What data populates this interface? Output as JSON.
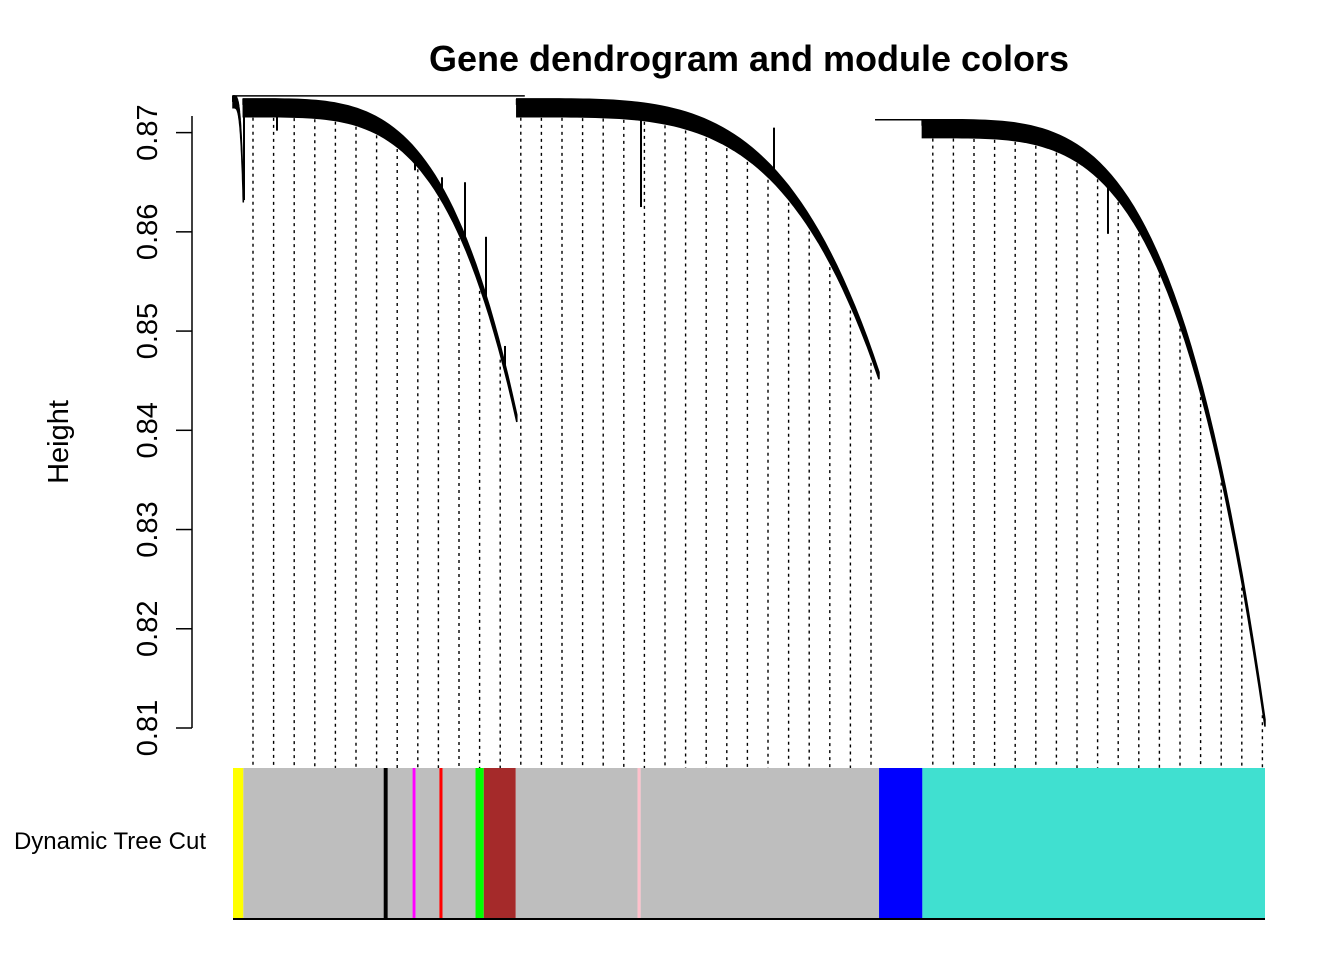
{
  "chart_data": {
    "type": "dendrogram",
    "title": "Gene dendrogram and module colors",
    "ylabel": "Height",
    "xlabel": "",
    "ylim": [
      0.81,
      0.875
    ],
    "yticks": [
      {
        "value": 0.81,
        "label": "0.81"
      },
      {
        "value": 0.82,
        "label": "0.82"
      },
      {
        "value": 0.83,
        "label": "0.83"
      },
      {
        "value": 0.84,
        "label": "0.84"
      },
      {
        "value": 0.85,
        "label": "0.85"
      },
      {
        "value": 0.86,
        "label": "0.86"
      },
      {
        "value": 0.87,
        "label": "0.87"
      }
    ],
    "n_leaves": 1000,
    "root_height": 0.8737,
    "branches": [
      {
        "leaf_start": 0,
        "leaf_end": 10,
        "merge_height": 0.8737,
        "min_height": 0.8632,
        "bundle_halfwidth": 0.0006
      },
      {
        "leaf_start": 10,
        "leaf_end": 275,
        "merge_height": 0.8734,
        "min_height": 0.8412,
        "bundle_halfwidth": 0.0009
      },
      {
        "leaf_start": 275,
        "leaf_end": 626,
        "merge_height": 0.8734,
        "min_height": 0.8455,
        "bundle_halfwidth": 0.0009
      },
      {
        "leaf_start": 668,
        "leaf_end": 1000,
        "merge_height": 0.8713,
        "min_height": 0.8105,
        "bundle_halfwidth": 0.0009
      }
    ],
    "color_row": {
      "label": "Dynamic Tree Cut",
      "segments": [
        {
          "color": "#FFFF00",
          "start": 0,
          "end": 10
        },
        {
          "color": "#BEBEBE",
          "start": 10,
          "end": 146
        },
        {
          "color": "#000000",
          "start": 146,
          "end": 150
        },
        {
          "color": "#BEBEBE",
          "start": 150,
          "end": 174
        },
        {
          "color": "#FF00FF",
          "start": 174,
          "end": 177
        },
        {
          "color": "#BEBEBE",
          "start": 177,
          "end": 200
        },
        {
          "color": "#FF0000",
          "start": 200,
          "end": 203
        },
        {
          "color": "#BEBEBE",
          "start": 203,
          "end": 235
        },
        {
          "color": "#00FF00",
          "start": 235,
          "end": 243
        },
        {
          "color": "#A52A2A",
          "start": 243,
          "end": 274
        },
        {
          "color": "#BEBEBE",
          "start": 274,
          "end": 392
        },
        {
          "color": "#FFC0CB",
          "start": 392,
          "end": 395
        },
        {
          "color": "#BEBEBE",
          "start": 395,
          "end": 626
        },
        {
          "color": "#0000FF",
          "start": 626,
          "end": 668
        },
        {
          "color": "#40E0D0",
          "start": 668,
          "end": 1000
        }
      ]
    }
  }
}
